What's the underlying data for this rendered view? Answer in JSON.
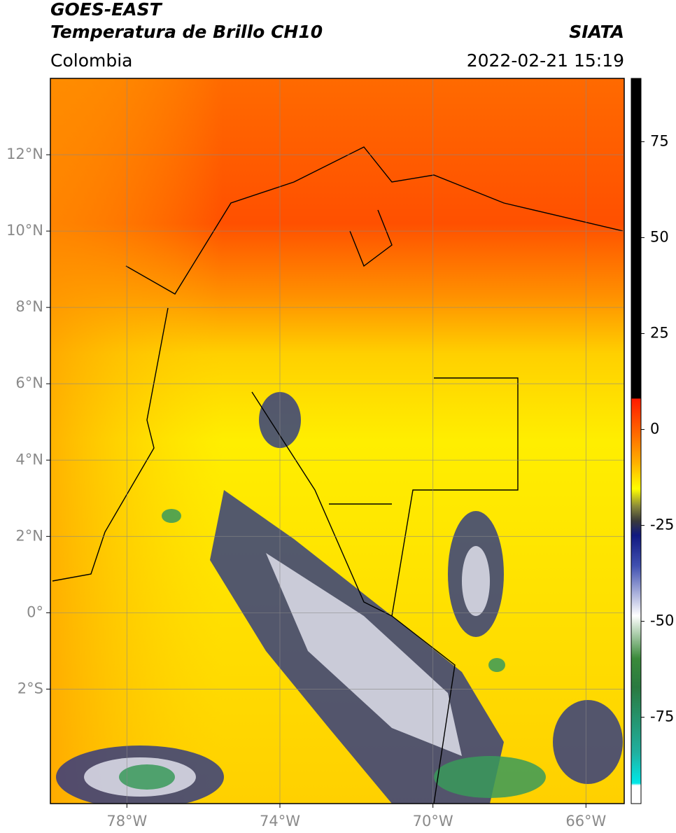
{
  "header": {
    "title": "GOES-EAST",
    "subtitle": "Temperatura de Brillo CH10",
    "source": "SIATA",
    "region": "Colombia",
    "timestamp": "2022-02-21 15:19"
  },
  "map": {
    "lon_range": [
      -80,
      -65
    ],
    "lat_range": [
      -5,
      14
    ],
    "grid": true,
    "lon_ticks": [
      {
        "value": -78,
        "label": "78°W"
      },
      {
        "value": -74,
        "label": "74°W"
      },
      {
        "value": -70,
        "label": "70°W"
      },
      {
        "value": -66,
        "label": "66°W"
      }
    ],
    "lat_ticks": [
      {
        "value": 12,
        "label": "12°N"
      },
      {
        "value": 10,
        "label": "10°N"
      },
      {
        "value": 8,
        "label": "8°N"
      },
      {
        "value": 6,
        "label": "6°N"
      },
      {
        "value": 4,
        "label": "4°N"
      },
      {
        "value": 2,
        "label": "2°N"
      },
      {
        "value": 0,
        "label": "0°"
      },
      {
        "value": -2,
        "label": "2°S"
      }
    ]
  },
  "colorbar": {
    "range": [
      -97.5,
      91.5
    ],
    "ticks": [
      75,
      50,
      25,
      0,
      -25,
      -50,
      -75
    ]
  }
}
